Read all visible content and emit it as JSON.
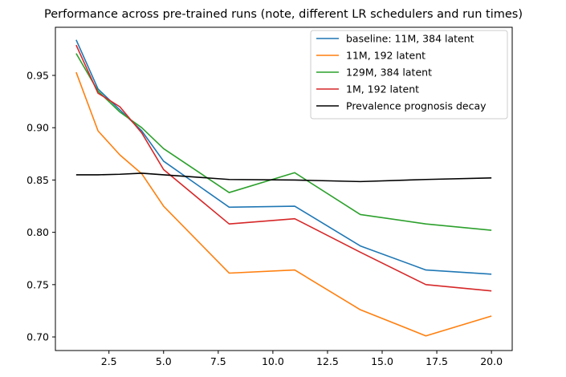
{
  "chart_data": {
    "type": "line",
    "title": "Performance across pre-trained runs (note, different LR schedulers and run times)",
    "xlabel": "",
    "ylabel": "",
    "xlim": [
      0.05,
      20.95
    ],
    "ylim": [
      0.687,
      0.996
    ],
    "xticks": [
      2.5,
      5.0,
      7.5,
      10.0,
      12.5,
      15.0,
      17.5,
      20.0
    ],
    "xtick_labels": [
      "2.5",
      "5.0",
      "7.5",
      "10.0",
      "12.5",
      "15.0",
      "17.5",
      "20.0"
    ],
    "yticks": [
      0.7,
      0.75,
      0.8,
      0.85,
      0.9,
      0.95
    ],
    "ytick_labels": [
      "0.70",
      "0.75",
      "0.80",
      "0.85",
      "0.90",
      "0.95"
    ],
    "grid": false,
    "legend_position": "top-right",
    "series": [
      {
        "name": "baseline: 11M, 384 latent",
        "color": "#1f77b4",
        "x": [
          1,
          2,
          3,
          4,
          5,
          8,
          11,
          14,
          17,
          20
        ],
        "y": [
          0.984,
          0.937,
          0.917,
          0.897,
          0.868,
          0.824,
          0.825,
          0.787,
          0.764,
          0.76
        ]
      },
      {
        "name": "11M, 192 latent",
        "color": "#ff7f0e",
        "x": [
          1,
          2,
          3,
          4,
          5,
          8,
          11,
          14,
          17,
          20
        ],
        "y": [
          0.953,
          0.897,
          0.874,
          0.856,
          0.825,
          0.761,
          0.764,
          0.726,
          0.701,
          0.72
        ]
      },
      {
        "name": "129M, 384 latent",
        "color": "#2ca02c",
        "x": [
          1,
          2,
          3,
          4,
          5,
          8,
          11,
          14,
          17,
          20
        ],
        "y": [
          0.971,
          0.935,
          0.915,
          0.9,
          0.88,
          0.838,
          0.857,
          0.817,
          0.808,
          0.802
        ]
      },
      {
        "name": "1M, 192 latent",
        "color": "#d62728",
        "x": [
          1,
          2,
          3,
          4,
          5,
          8,
          11,
          14,
          17,
          20
        ],
        "y": [
          0.979,
          0.933,
          0.92,
          0.895,
          0.86,
          0.808,
          0.813,
          0.781,
          0.75,
          0.744
        ]
      },
      {
        "name": "Prevalence prognosis decay",
        "color": "#000000",
        "x": [
          1,
          2,
          3,
          4,
          5,
          8,
          11,
          14,
          17,
          20
        ],
        "y": [
          0.855,
          0.855,
          0.8555,
          0.8565,
          0.855,
          0.8505,
          0.85,
          0.8485,
          0.8505,
          0.852
        ]
      }
    ]
  }
}
